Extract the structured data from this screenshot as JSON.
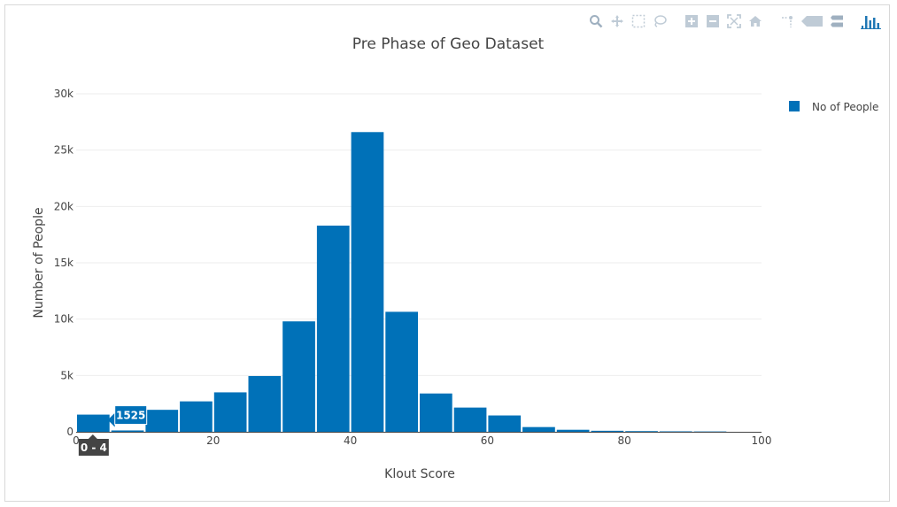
{
  "modebar": {
    "buttons": [
      {
        "name": "zoom-icon"
      },
      {
        "name": "pan-icon"
      },
      {
        "name": "box-select-icon"
      },
      {
        "name": "lasso-select-icon"
      },
      {
        "name": "zoom-in-icon"
      },
      {
        "name": "zoom-out-icon"
      },
      {
        "name": "autoscale-icon"
      },
      {
        "name": "reset-axes-icon"
      },
      {
        "name": "spike-lines-icon"
      },
      {
        "name": "hover-closest-icon"
      },
      {
        "name": "hover-compare-icon"
      },
      {
        "name": "plotly-logo-icon"
      }
    ],
    "icon_color": "#bfcbd6",
    "active_color": "#1f77b4"
  },
  "chart_data": {
    "type": "bar",
    "title": "Pre Phase of  Geo Dataset",
    "xlabel": "Klout Score",
    "ylabel": "Number of People",
    "xlim": [
      0,
      100
    ],
    "ylim": [
      0,
      30000
    ],
    "xticks": [
      0,
      20,
      40,
      60,
      80,
      100
    ],
    "xtick_labels": [
      "0",
      "20",
      "40",
      "60",
      "80",
      "100"
    ],
    "yticks": [
      0,
      5000,
      10000,
      15000,
      20000,
      25000,
      30000
    ],
    "ytick_labels": [
      "0",
      "5k",
      "10k",
      "15k",
      "20k",
      "25k",
      "30k"
    ],
    "grid": true,
    "legend_position": "top-right",
    "bin_edges": [
      0,
      5,
      10,
      15,
      20,
      25,
      30,
      35,
      40,
      45,
      50,
      55,
      60,
      65,
      70,
      75,
      80,
      85,
      90,
      95,
      100
    ],
    "series": [
      {
        "name": "No of People",
        "color": "#0071b8",
        "values": [
          1525,
          120,
          1950,
          2700,
          3500,
          4950,
          9800,
          18300,
          26600,
          10650,
          3400,
          2150,
          1450,
          420,
          180,
          90,
          60,
          40,
          30,
          0
        ]
      }
    ],
    "hover": {
      "bin_index": 0,
      "value_label": "1525",
      "x_label": "0 - 4"
    }
  }
}
